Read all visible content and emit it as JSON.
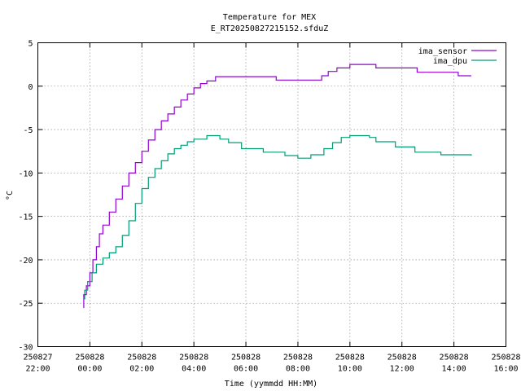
{
  "chart_data": {
    "type": "line",
    "title": "Temperature for MEX",
    "subtitle": "E_RT20250827215152.sfduZ",
    "xlabel": "Time (yymmdd HH:MM)",
    "ylabel": "°C",
    "xlim": [
      "2025-08-27 22:00",
      "2025-08-28 16:00"
    ],
    "ylim": [
      -30,
      5
    ],
    "grid": true,
    "legend_position": "top-right",
    "x_ticks": [
      {
        "t": "2025-08-27 22:00",
        "date": "250827",
        "time": "22:00"
      },
      {
        "t": "2025-08-28 00:00",
        "date": "250828",
        "time": "00:00"
      },
      {
        "t": "2025-08-28 02:00",
        "date": "250828",
        "time": "02:00"
      },
      {
        "t": "2025-08-28 04:00",
        "date": "250828",
        "time": "04:00"
      },
      {
        "t": "2025-08-28 06:00",
        "date": "250828",
        "time": "06:00"
      },
      {
        "t": "2025-08-28 08:00",
        "date": "250828",
        "time": "08:00"
      },
      {
        "t": "2025-08-28 10:00",
        "date": "250828",
        "time": "10:00"
      },
      {
        "t": "2025-08-28 12:00",
        "date": "250828",
        "time": "12:00"
      },
      {
        "t": "2025-08-28 14:00",
        "date": "250828",
        "time": "14:00"
      },
      {
        "t": "2025-08-28 16:00",
        "date": "250828",
        "time": "16:00"
      }
    ],
    "y_ticks": [
      5,
      0,
      -5,
      -10,
      -15,
      -20,
      -25,
      -30
    ],
    "series": [
      {
        "name": "ima_sensor",
        "color": "#9400d3",
        "points": [
          [
            "2025-08-27 23:45",
            -25.5
          ],
          [
            "2025-08-27 23:46",
            -24.0
          ],
          [
            "2025-08-27 23:52",
            -23.0
          ],
          [
            "2025-08-28 00:00",
            -21.5
          ],
          [
            "2025-08-28 00:07",
            -20.0
          ],
          [
            "2025-08-28 00:15",
            -18.5
          ],
          [
            "2025-08-28 00:22",
            -17.0
          ],
          [
            "2025-08-28 00:30",
            -16.0
          ],
          [
            "2025-08-28 00:45",
            -14.5
          ],
          [
            "2025-08-28 01:00",
            -13.0
          ],
          [
            "2025-08-28 01:15",
            -11.5
          ],
          [
            "2025-08-28 01:30",
            -10.0
          ],
          [
            "2025-08-28 01:45",
            -8.8
          ],
          [
            "2025-08-28 02:00",
            -7.5
          ],
          [
            "2025-08-28 02:15",
            -6.2
          ],
          [
            "2025-08-28 02:30",
            -5.0
          ],
          [
            "2025-08-28 02:45",
            -4.0
          ],
          [
            "2025-08-28 03:00",
            -3.2
          ],
          [
            "2025-08-28 03:15",
            -2.4
          ],
          [
            "2025-08-28 03:30",
            -1.6
          ],
          [
            "2025-08-28 03:45",
            -0.9
          ],
          [
            "2025-08-28 04:00",
            -0.2
          ],
          [
            "2025-08-28 04:15",
            0.3
          ],
          [
            "2025-08-28 04:30",
            0.6
          ],
          [
            "2025-08-28 04:50",
            1.1
          ],
          [
            "2025-08-28 07:05",
            1.1
          ],
          [
            "2025-08-28 07:10",
            0.7
          ],
          [
            "2025-08-28 08:40",
            0.7
          ],
          [
            "2025-08-28 08:55",
            1.2
          ],
          [
            "2025-08-28 09:10",
            1.7
          ],
          [
            "2025-08-28 09:30",
            2.1
          ],
          [
            "2025-08-28 10:00",
            2.5
          ],
          [
            "2025-08-28 10:55",
            2.5
          ],
          [
            "2025-08-28 11:00",
            2.1
          ],
          [
            "2025-08-28 12:25",
            2.1
          ],
          [
            "2025-08-28 12:35",
            1.6
          ],
          [
            "2025-08-28 13:55",
            1.6
          ],
          [
            "2025-08-28 14:10",
            1.2
          ],
          [
            "2025-08-28 14:40",
            1.2
          ]
        ]
      },
      {
        "name": "ima_dpu",
        "color": "#009e73",
        "points": [
          [
            "2025-08-27 23:45",
            -24.5
          ],
          [
            "2025-08-27 23:48",
            -23.5
          ],
          [
            "2025-08-27 23:55",
            -22.5
          ],
          [
            "2025-08-28 00:05",
            -21.5
          ],
          [
            "2025-08-28 00:15",
            -20.5
          ],
          [
            "2025-08-28 00:30",
            -19.8
          ],
          [
            "2025-08-28 00:45",
            -19.2
          ],
          [
            "2025-08-28 01:00",
            -18.5
          ],
          [
            "2025-08-28 01:15",
            -17.2
          ],
          [
            "2025-08-28 01:30",
            -15.5
          ],
          [
            "2025-08-28 01:45",
            -13.5
          ],
          [
            "2025-08-28 02:00",
            -11.8
          ],
          [
            "2025-08-28 02:15",
            -10.5
          ],
          [
            "2025-08-28 02:30",
            -9.5
          ],
          [
            "2025-08-28 02:45",
            -8.6
          ],
          [
            "2025-08-28 03:00",
            -7.8
          ],
          [
            "2025-08-28 03:15",
            -7.2
          ],
          [
            "2025-08-28 03:30",
            -6.8
          ],
          [
            "2025-08-28 03:45",
            -6.4
          ],
          [
            "2025-08-28 04:00",
            -6.1
          ],
          [
            "2025-08-28 04:30",
            -5.7
          ],
          [
            "2025-08-28 05:00",
            -6.1
          ],
          [
            "2025-08-28 05:20",
            -6.5
          ],
          [
            "2025-08-28 05:50",
            -7.2
          ],
          [
            "2025-08-28 06:40",
            -7.6
          ],
          [
            "2025-08-28 07:30",
            -8.0
          ],
          [
            "2025-08-28 08:00",
            -8.3
          ],
          [
            "2025-08-28 08:30",
            -7.9
          ],
          [
            "2025-08-28 09:00",
            -7.2
          ],
          [
            "2025-08-28 09:20",
            -6.5
          ],
          [
            "2025-08-28 09:40",
            -5.9
          ],
          [
            "2025-08-28 10:00",
            -5.7
          ],
          [
            "2025-08-28 10:45",
            -5.9
          ],
          [
            "2025-08-28 11:00",
            -6.4
          ],
          [
            "2025-08-28 11:45",
            -7.0
          ],
          [
            "2025-08-28 12:30",
            -7.6
          ],
          [
            "2025-08-28 13:30",
            -7.9
          ],
          [
            "2025-08-28 14:40",
            -8.0
          ]
        ]
      }
    ]
  }
}
